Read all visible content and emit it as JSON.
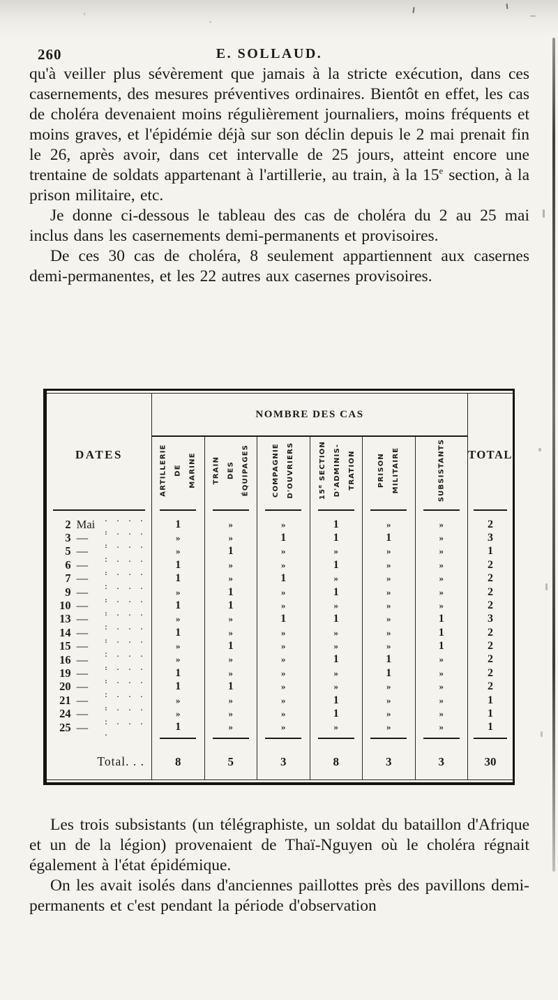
{
  "colors": {
    "ink": "#1d1b18",
    "paper": "#f5f3ee",
    "rule": "#16130e"
  },
  "header": {
    "page_number": "260",
    "running_title": "E. SOLLAUD."
  },
  "paragraphs_top": [
    {
      "indent": false,
      "text": "qu'à veiller plus sévèrement que jamais à la stricte exécution, dans ces casernements, des mesures préventives ordinaires. Bientôt en effet, les cas de choléra devenaient moins régulièrement journaliers, moins fréquents et moins graves, et l'épidémie déjà sur son déclin depuis le 2 mai prenait fin le 26, après avoir, dans cet intervalle de 25 jours, atteint encore une trentaine de soldats appartenant à l'artillerie, au train, à la 15{e} section, à la prison militaire, etc."
    },
    {
      "indent": true,
      "text": "Je donne ci-dessous le tableau des cas de choléra du 2 au 25 mai inclus dans les casernements demi-permanents et provisoires."
    },
    {
      "indent": true,
      "text": "De ces 30 cas de choléra, 8 seulement appartiennent aux casernes demi-permanentes, et les 22 autres aux casernes provisoires."
    }
  ],
  "paragraphs_bottom": [
    {
      "indent": true,
      "text": "Les trois subsistants (un télégraphiste, un soldat du bataillon d'Afrique et un de la légion) provenaient de Thaï-Nguyen où le choléra régnait également à l'état épidémique."
    },
    {
      "indent": true,
      "text": "On les avait isolés dans d'anciennes paillottes près des pavillons demi-permanents et c'est pendant la période d'observation"
    }
  ],
  "table": {
    "dates_header": "DATES",
    "group_header": "NOMBRE DES CAS",
    "total_header": "TOTAL",
    "none_symbol": "»",
    "dot_leader": ". . . . .",
    "columns": [
      {
        "name": "artillerie-de-marine",
        "lines": [
          "ARTILLERIE",
          "DE",
          "MARINE"
        ]
      },
      {
        "name": "train-des-equipages",
        "lines": [
          "TRAIN",
          "DES",
          "ÉQUIPAGES"
        ]
      },
      {
        "name": "compagnie-douvriers",
        "lines": [
          "COMPAGNIE",
          "D'OUVRIERS"
        ]
      },
      {
        "name": "15e-section-administration",
        "lines": [
          "15{e} SECTION",
          "D'ADMINIS-",
          "TRATION"
        ]
      },
      {
        "name": "prison-militaire",
        "lines": [
          "PRISON",
          "MILITAIRE"
        ]
      },
      {
        "name": "subsistants",
        "lines": [
          "SUBSISTANTS"
        ]
      }
    ],
    "rows": [
      {
        "date": "2",
        "month": "Mai",
        "values": [
          "1",
          "»",
          "»",
          "1",
          "»",
          "»"
        ],
        "total": "2"
      },
      {
        "date": "3",
        "month": "—",
        "values": [
          "»",
          "»",
          "1",
          "1",
          "1",
          "»"
        ],
        "total": "3"
      },
      {
        "date": "5",
        "month": "—",
        "values": [
          "»",
          "1",
          "»",
          "»",
          "»",
          "»"
        ],
        "total": "1"
      },
      {
        "date": "6",
        "month": "—",
        "values": [
          "1",
          "»",
          "»",
          "1",
          "»",
          "»"
        ],
        "total": "2"
      },
      {
        "date": "7",
        "month": "—",
        "values": [
          "1",
          "»",
          "1",
          "»",
          "»",
          "»"
        ],
        "total": "2"
      },
      {
        "date": "9",
        "month": "—",
        "values": [
          "»",
          "1",
          "»",
          "1",
          "»",
          "»"
        ],
        "total": "2"
      },
      {
        "date": "10",
        "month": "—",
        "values": [
          "1",
          "1",
          "»",
          "»",
          "»",
          "»"
        ],
        "total": "2"
      },
      {
        "date": "13",
        "month": "—",
        "values": [
          "»",
          "»",
          "1",
          "1",
          "»",
          "1"
        ],
        "total": "3"
      },
      {
        "date": "14",
        "month": "—",
        "values": [
          "1",
          "»",
          "»",
          "»",
          "»",
          "1"
        ],
        "total": "2"
      },
      {
        "date": "15",
        "month": "—",
        "values": [
          "»",
          "1",
          "»",
          "»",
          "»",
          "1"
        ],
        "total": "2"
      },
      {
        "date": "16",
        "month": "—",
        "values": [
          "»",
          "»",
          "»",
          "1",
          "1",
          "»"
        ],
        "total": "2"
      },
      {
        "date": "19",
        "month": "—",
        "values": [
          "1",
          "»",
          "»",
          "»",
          "1",
          "»"
        ],
        "total": "2"
      },
      {
        "date": "20",
        "month": "—",
        "values": [
          "1",
          "1",
          "»",
          "»",
          "»",
          "»"
        ],
        "total": "2"
      },
      {
        "date": "21",
        "month": "—",
        "values": [
          "»",
          "»",
          "»",
          "1",
          "»",
          "»"
        ],
        "total": "1"
      },
      {
        "date": "24",
        "month": "—",
        "values": [
          "»",
          "»",
          "»",
          "1",
          "»",
          "»"
        ],
        "total": "1"
      },
      {
        "date": "25",
        "month": "—",
        "values": [
          "1",
          "»",
          "»",
          "»",
          "»",
          "»"
        ],
        "total": "1"
      }
    ],
    "total_row": {
      "label": "Total. . .",
      "values": [
        "8",
        "5",
        "3",
        "8",
        "3",
        "3"
      ],
      "total": "30"
    }
  }
}
